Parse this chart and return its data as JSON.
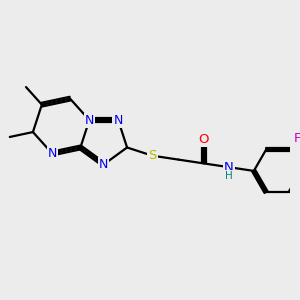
{
  "bg_color": "#ececec",
  "bond_color": "#000000",
  "bond_width": 1.6,
  "atom_colors": {
    "N": "#0000ee",
    "S": "#b8b800",
    "O": "#ff0000",
    "F": "#cc00cc",
    "H": "#008080",
    "C": "#000000"
  },
  "font_size": 9.0
}
